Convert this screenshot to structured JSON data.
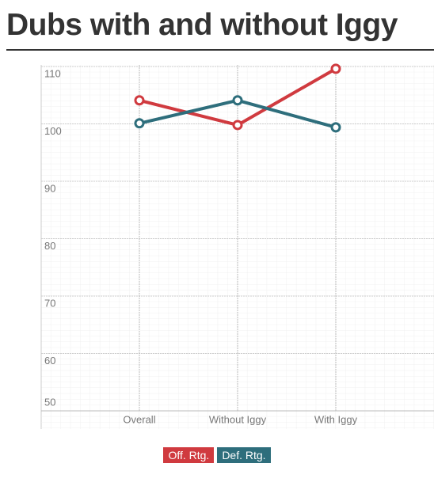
{
  "chart_data": {
    "type": "line",
    "title": "Dubs with and without Iggy",
    "categories": [
      "Overall",
      "Without Iggy",
      "With Iggy"
    ],
    "series": [
      {
        "name": "Off. Rtg.",
        "color": "#d03a3f",
        "values": [
          104.1,
          99.8,
          109.6
        ]
      },
      {
        "name": "Def. Rtg.",
        "color": "#2e6e7c",
        "values": [
          100.1,
          104.1,
          99.4
        ]
      }
    ],
    "ylim": [
      50,
      110
    ],
    "yticks": [
      50,
      60,
      70,
      80,
      90,
      100,
      110
    ],
    "grid": true
  }
}
